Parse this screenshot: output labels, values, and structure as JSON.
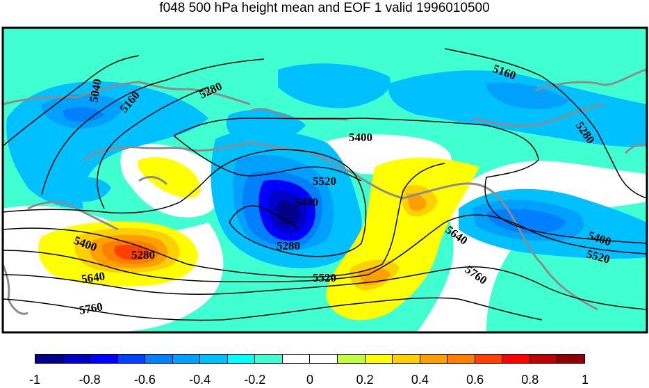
{
  "title": "f048 500 hPa height mean and EOF 1 valid 1996010500",
  "colorbar": {
    "colors": [
      "#00008b",
      "#0000c8",
      "#0000ff",
      "#0040ff",
      "#0080ff",
      "#00a0ff",
      "#00c0ff",
      "#00ffff",
      "#40ffd0",
      "#ffffff",
      "#ffffff",
      "#c0ff40",
      "#ffff00",
      "#ffd000",
      "#ffa000",
      "#ff8000",
      "#ff4000",
      "#ff0000",
      "#c00000",
      "#900000"
    ],
    "tick_labels": [
      "-1",
      "-0.8",
      "-0.6",
      "-0.4",
      "-0.2",
      "0",
      "0.2",
      "0.4",
      "0.6",
      "0.8",
      "1"
    ]
  },
  "contour_labels": [
    "5040",
    "5160",
    "5280",
    "5160",
    "5280",
    "5400",
    "5520",
    "5400",
    "5280",
    "5400",
    "5280",
    "5640",
    "5760",
    "5520",
    "5640",
    "5760",
    "5400",
    "5520"
  ]
}
